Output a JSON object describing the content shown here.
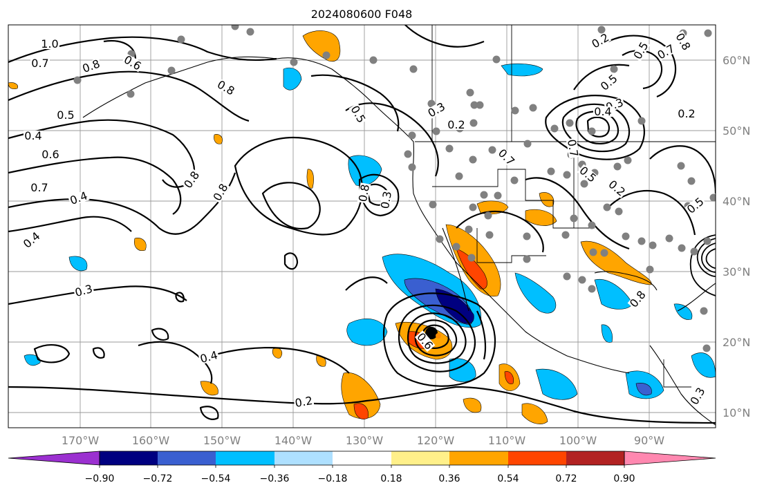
{
  "title": "2024080600 F048",
  "lon_labels": [
    "170°W",
    "160°W",
    "150°W",
    "140°W",
    "130°W",
    "120°W",
    "110°W",
    "100°W",
    "90°W"
  ],
  "lat_labels": [
    "60°N",
    "50°N",
    "40°N",
    "30°N",
    "20°N",
    "10°N"
  ],
  "colorbar": {
    "ticks": [
      "−0.90",
      "−0.72",
      "−0.54",
      "−0.36",
      "−0.18",
      "0.18",
      "0.36",
      "0.54",
      "0.72",
      "0.90"
    ],
    "colors": [
      "#9b30d0",
      "#000080",
      "#3a5fd0",
      "#00bfff",
      "#aee0ff",
      "#ffffff",
      "#fff08a",
      "#ffa500",
      "#ff4500",
      "#b22222",
      "#ff88b0"
    ]
  },
  "contour_labels": [
    "1.0",
    "0.7",
    "0.8",
    "0.6",
    "0.5",
    "0.4",
    "0.6",
    "0.8",
    "0.7",
    "0.4",
    "0.8",
    "0.4",
    "0.3",
    "0.4",
    "0.2",
    "0.8",
    "0.5",
    "0.3",
    "0.2",
    "0.2",
    "0.5",
    "0.8",
    "0.7",
    "0.5",
    "0.3",
    "0.4",
    "0.2",
    "0.7",
    "0.5",
    "0.2",
    "0.5",
    "0.8",
    "0.3",
    "0.3",
    "0.8",
    "0.6",
    "0.7"
  ],
  "colors": {
    "positive": "#ffa500",
    "negative": "#00bfff",
    "strong_negative": "#000080",
    "station": "#808080"
  }
}
